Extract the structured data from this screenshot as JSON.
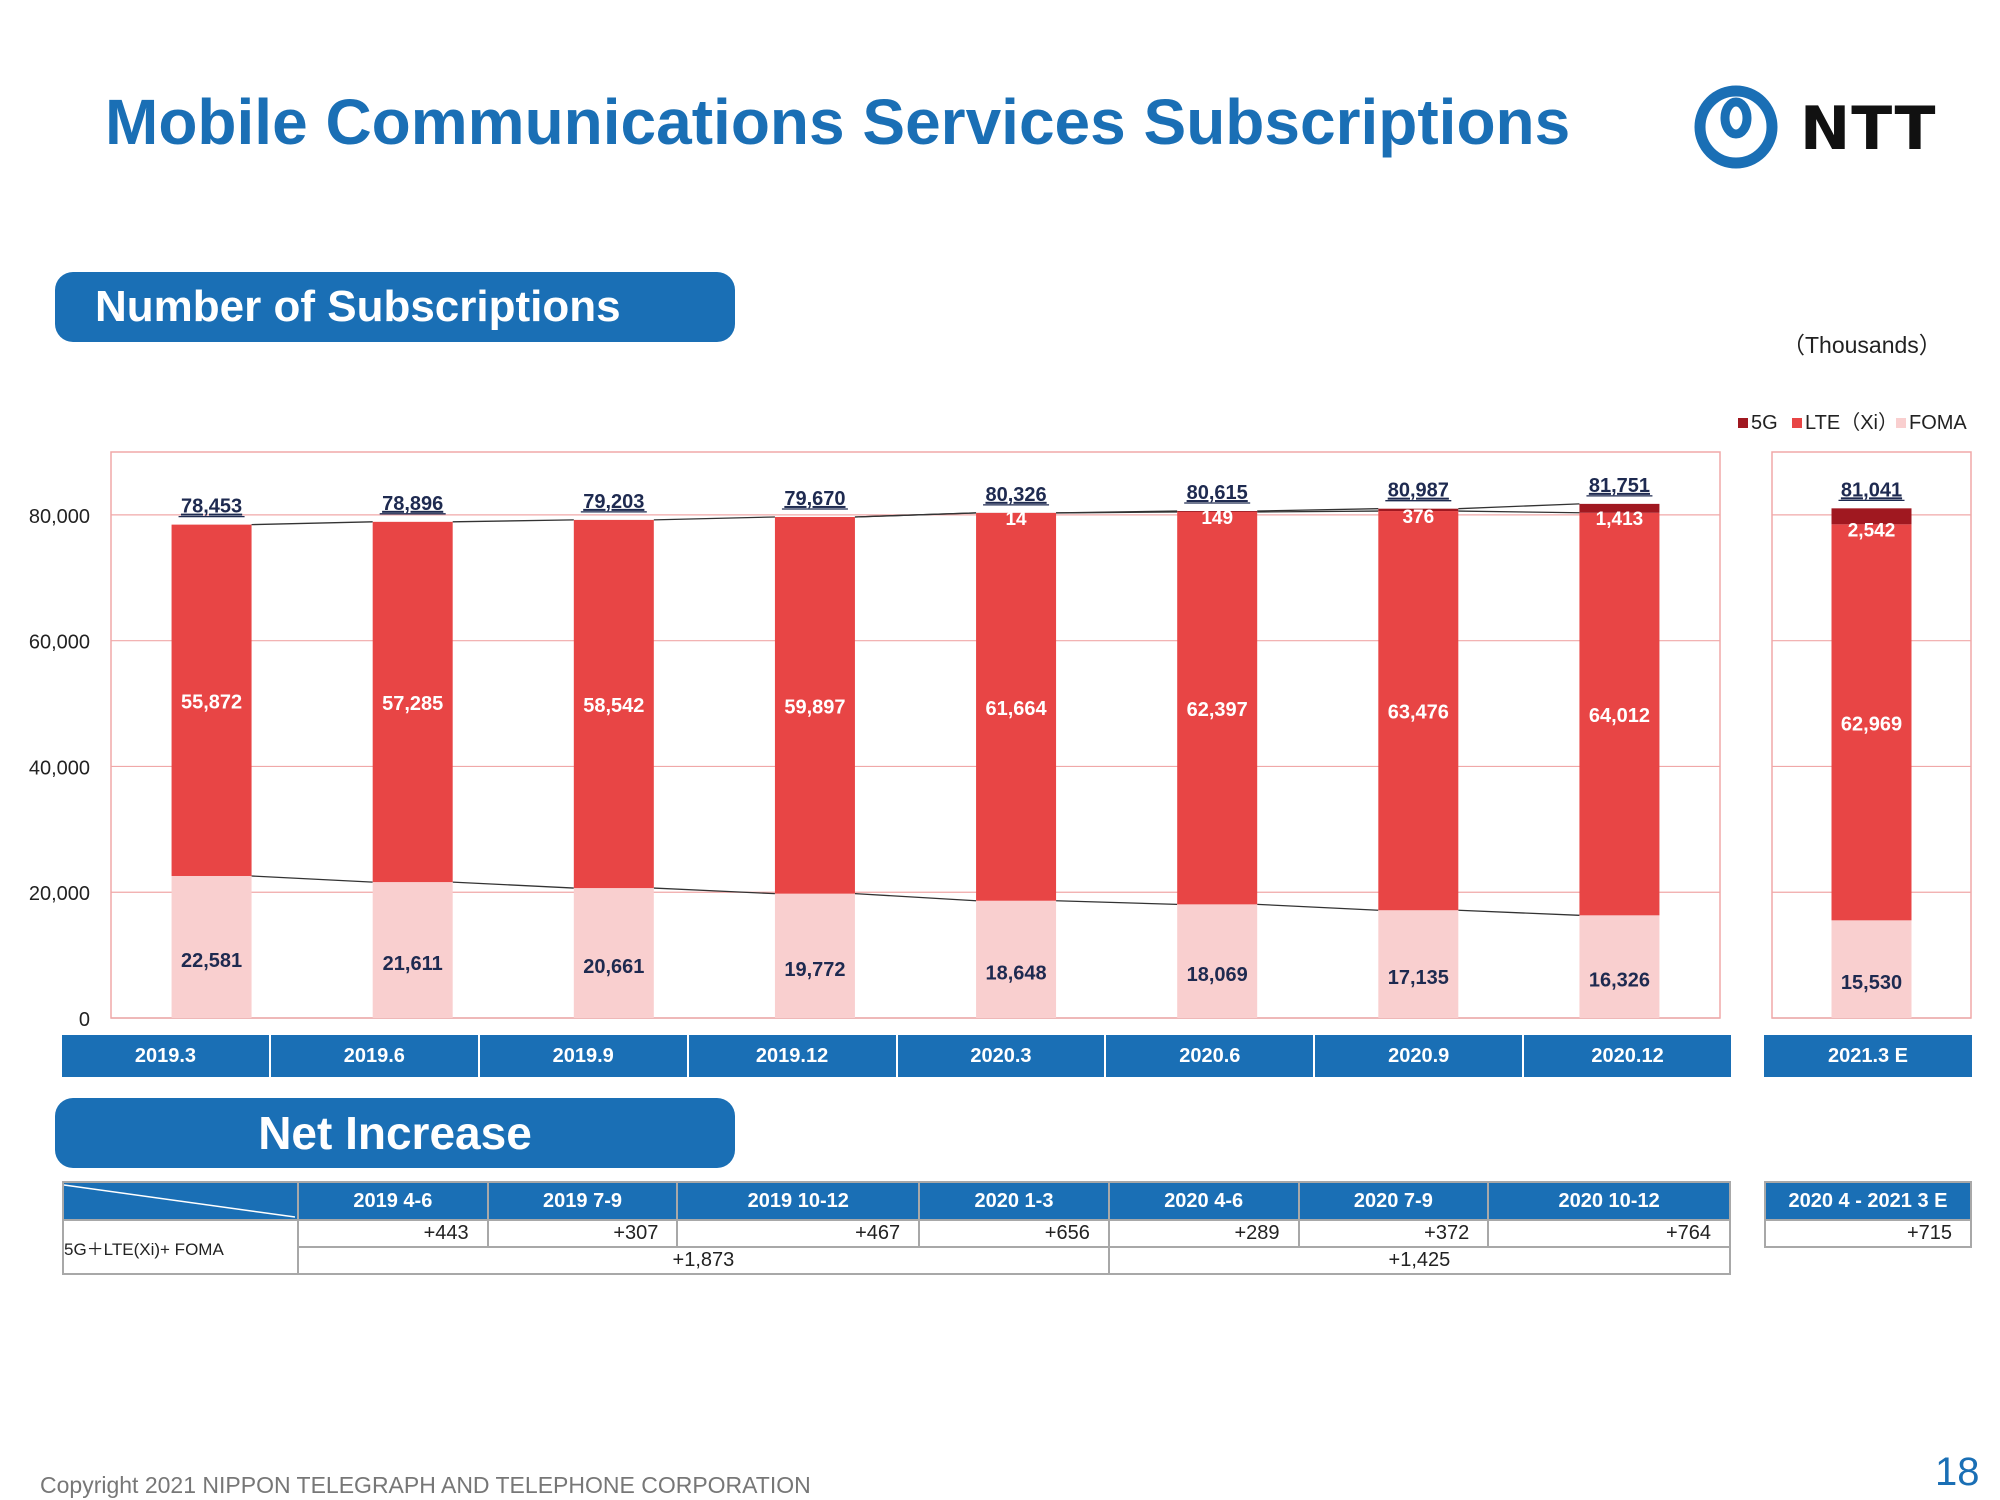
{
  "header": {
    "title": "Mobile Communications Services Subscriptions",
    "logo_text": "NTT"
  },
  "section1": {
    "title": "Number of Subscriptions",
    "units": "（Thousands）"
  },
  "section2": {
    "title": "Net Increase",
    "row_label": "5G＋LTE(Xi)+ FOMA",
    "periods": [
      "2019 4-6",
      "2019 7-9",
      "2019 10-12",
      "2020 1-3",
      "2020 4-6",
      "2020 7-9",
      "2020 10-12"
    ],
    "values": [
      "+443",
      "+307",
      "+467",
      "+656",
      "+289",
      "+372",
      "+764"
    ],
    "subtotals": [
      "+1,873",
      "+1,425"
    ],
    "projection_period": "2020 4 - 2021 3 E",
    "projection_value": "+715"
  },
  "footer": {
    "copyright": "Copyright 2021 NIPPON TELEGRAPH AND TELEPHONE CORPORATION",
    "page": "18"
  },
  "colors": {
    "brand_blue": "#1a6fb5",
    "fiveg": "#a01820",
    "lte": "#e84545",
    "foma": "#f9cfcf",
    "grid": "#f0a8a8"
  },
  "chart_data": {
    "type": "bar",
    "stacked": true,
    "categories": [
      "2019.3",
      "2019.6",
      "2019.9",
      "2019.12",
      "2020.3",
      "2020.6",
      "2020.9",
      "2020.12",
      "2021.3 E"
    ],
    "ylim": [
      0,
      90000
    ],
    "yticks": [
      0,
      20000,
      40000,
      60000,
      80000
    ],
    "ytick_labels": [
      "0",
      "20,000",
      "40,000",
      "60,000",
      "80,000"
    ],
    "series": [
      {
        "name": "FOMA",
        "values": [
          22581,
          21611,
          20661,
          19772,
          18648,
          18069,
          17135,
          16326,
          15530
        ],
        "labels": [
          "22,581",
          "21,611",
          "20,661",
          "19,772",
          "18,648",
          "18,069",
          "17,135",
          "16,326",
          "15,530"
        ]
      },
      {
        "name": "LTE（Xi）",
        "values": [
          55872,
          57285,
          58542,
          59897,
          61664,
          62397,
          63476,
          64012,
          62969
        ],
        "labels": [
          "55,872",
          "57,285",
          "58,542",
          "59,897",
          "61,664",
          "62,397",
          "63,476",
          "64,012",
          "62,969"
        ]
      },
      {
        "name": "5G",
        "values": [
          0,
          0,
          0,
          0,
          14,
          149,
          376,
          1413,
          2542
        ],
        "labels": [
          "",
          "",
          "",
          "",
          "14",
          "149",
          "376",
          "1,413",
          "2,542"
        ]
      }
    ],
    "totals": [
      78453,
      78896,
      79203,
      79670,
      80326,
      80615,
      80987,
      81751,
      81041
    ],
    "total_labels": [
      "78,453",
      "78,896",
      "79,203",
      "79,670",
      "80,326",
      "80,615",
      "80,987",
      "81,751",
      "81,041"
    ],
    "legend": [
      "5G",
      "LTE（Xi）",
      "FOMA"
    ],
    "legend_position": "top-right",
    "grid": true
  }
}
